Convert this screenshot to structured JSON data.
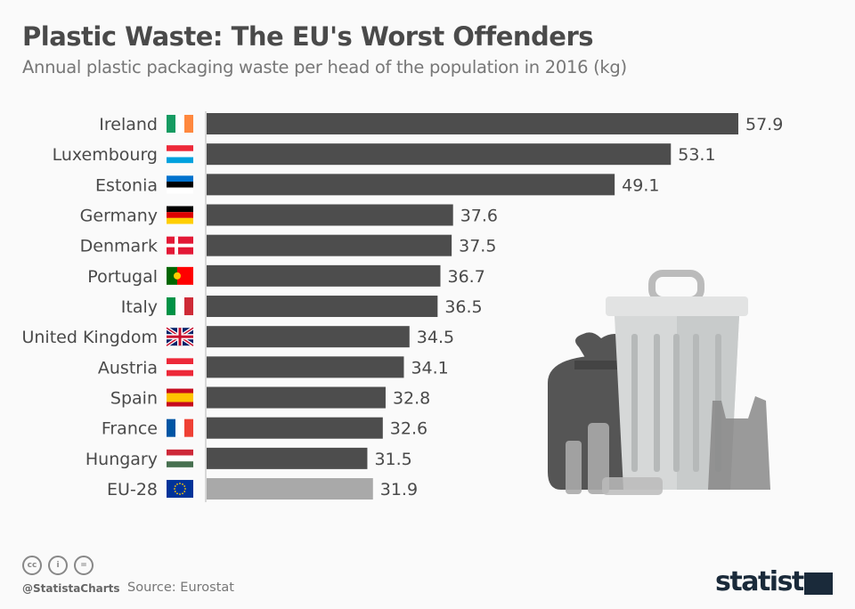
{
  "header": {
    "title": "Plastic Waste: The EU's Worst Offenders",
    "subtitle": "Annual plastic packaging waste per head of the population in 2016 (kg)"
  },
  "chart_data": {
    "type": "bar",
    "orientation": "horizontal",
    "title": "Plastic Waste: The EU's Worst Offenders",
    "subtitle": "Annual plastic packaging waste per head of the population in 2016 (kg)",
    "categories": [
      "Ireland",
      "Luxembourg",
      "Estonia",
      "Germany",
      "Denmark",
      "Portugal",
      "Italy",
      "United Kingdom",
      "Austria",
      "Spain",
      "France",
      "Hungary",
      "EU-28"
    ],
    "flags": [
      "ie",
      "lu",
      "ee",
      "de",
      "dk",
      "pt",
      "it",
      "gb",
      "at",
      "es",
      "fr",
      "hu",
      "eu"
    ],
    "values": [
      57.9,
      53.1,
      49.1,
      37.6,
      37.5,
      36.7,
      36.5,
      34.5,
      34.1,
      32.8,
      32.6,
      31.5,
      31.9
    ],
    "value_labels": [
      "57.9",
      "53.1",
      "49.1",
      "37.6",
      "37.5",
      "36.7",
      "36.5",
      "34.5",
      "34.1",
      "32.8",
      "32.6",
      "31.5",
      "31.9"
    ],
    "xlim": [
      20,
      58
    ],
    "grid": false,
    "colors": {
      "bar": "#4d4d4d",
      "highlight": "#a9a9a9"
    }
  },
  "footer": {
    "handle": "@StatistaCharts",
    "source": "Source: Eurostat",
    "logo": "statista",
    "license_icons": [
      "cc",
      "by",
      "nd"
    ],
    "license_labels": [
      "cc",
      "i",
      "="
    ]
  }
}
